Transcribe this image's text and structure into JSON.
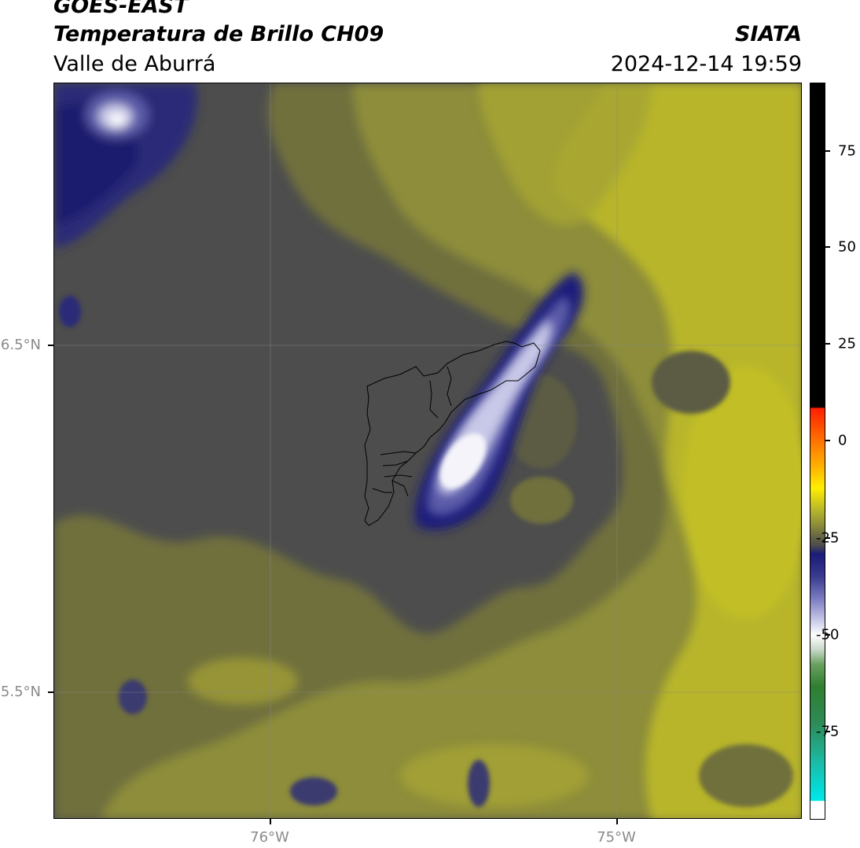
{
  "header": {
    "satellite": "GOES-EAST",
    "product": "Temperatura de Brillo CH09",
    "region": "Valle de Aburrá",
    "organization": "SIATA",
    "timestamp": "2024-12-14 19:59"
  },
  "axes": {
    "lat_labels": [
      "6.5°N",
      "5.5°N"
    ],
    "lon_labels": [
      "76°W",
      "75°W"
    ]
  },
  "colorbar": {
    "labels": [
      "75",
      "50",
      "25",
      "0",
      "-25",
      "-50",
      "-75"
    ]
  },
  "colors": {
    "background_clear": "#4d4d4d",
    "olive": "#8d8d3a",
    "yellow": "#b8b52a",
    "cold_blue": "#1b1b7a",
    "very_cold": "#ffffff"
  }
}
